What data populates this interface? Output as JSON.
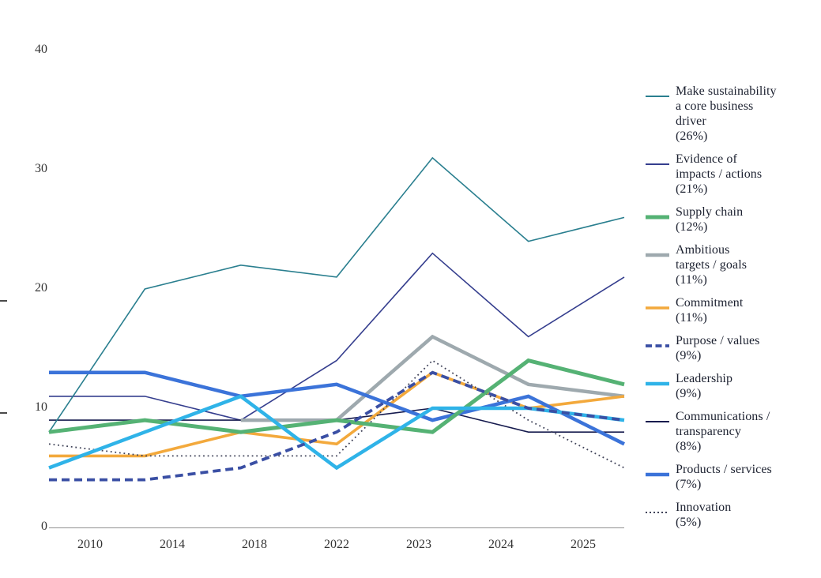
{
  "chart_data": {
    "type": "line",
    "x_labels": [
      "2010",
      "2014",
      "2018",
      "2022",
      "2023",
      "2024",
      "2025"
    ],
    "y_ticks": [
      0,
      10,
      20,
      30,
      40
    ],
    "ylim": [
      0,
      40
    ],
    "grid": false,
    "legend_position": "right",
    "axis_line_color": "#909090",
    "axis_label_color": "#333333",
    "legend_text_color": "#1c2130",
    "z_order": [
      1,
      7,
      0,
      3,
      4,
      9,
      8,
      2,
      6,
      5
    ],
    "series": [
      {
        "name": "Make sustainability a core business driver",
        "percent": "(26%)",
        "legend_lines": [
          "Make sustainability",
          "a core business",
          "driver"
        ],
        "color": "#2A7F8F",
        "style": "solid",
        "width": 1.6,
        "values": [
          8,
          20,
          22,
          21,
          31,
          24,
          26
        ]
      },
      {
        "name": "Evidence of impacts / actions",
        "percent": "(21%)",
        "legend_lines": [
          "Evidence of",
          "impacts / actions"
        ],
        "color": "#353E8E",
        "style": "solid",
        "width": 1.6,
        "values": [
          11,
          11,
          9,
          14,
          23,
          16,
          21
        ]
      },
      {
        "name": "Supply chain",
        "percent": "(12%)",
        "legend_lines": [
          "Supply chain"
        ],
        "color": "#55B274",
        "style": "solid",
        "width": 5,
        "values": [
          8,
          9,
          8,
          9,
          8,
          14,
          12
        ]
      },
      {
        "name": "Ambitious targets / goals",
        "percent": "(11%)",
        "legend_lines": [
          "Ambitious",
          "targets / goals"
        ],
        "color": "#9EA9AE",
        "style": "solid",
        "width": 4.5,
        "values": [
          null,
          null,
          9,
          9,
          16,
          12,
          11
        ]
      },
      {
        "name": "Commitment",
        "percent": "(11%)",
        "legend_lines": [
          "Commitment"
        ],
        "color": "#F3A93C",
        "style": "solid",
        "width": 3.6,
        "values": [
          6,
          6,
          8,
          7,
          13,
          10,
          11
        ]
      },
      {
        "name": "Purpose / values",
        "percent": "(9%)",
        "legend_lines": [
          "Purpose / values"
        ],
        "color": "#3A4FA4",
        "style": "dashed",
        "width": 3.8,
        "values": [
          4,
          4,
          5,
          8,
          13,
          10,
          9
        ]
      },
      {
        "name": "Leadership",
        "percent": "(9%)",
        "legend_lines": [
          "Leadership"
        ],
        "color": "#2FB3E8",
        "style": "solid",
        "width": 4.5,
        "values": [
          5,
          8,
          11,
          5,
          10,
          10,
          9
        ]
      },
      {
        "name": "Communications / transparency",
        "percent": "(8%)",
        "legend_lines": [
          "Communications /",
          "transparency"
        ],
        "color": "#161B4E",
        "style": "solid",
        "width": 1.6,
        "values": [
          9,
          9,
          9,
          9,
          10,
          8,
          8
        ]
      },
      {
        "name": "Products / services",
        "percent": "(7%)",
        "legend_lines": [
          "Products / services"
        ],
        "color": "#3B73D9",
        "style": "solid",
        "width": 4.5,
        "values": [
          13,
          13,
          11,
          12,
          9,
          11,
          7
        ]
      },
      {
        "name": "Innovation",
        "percent": "(5%)",
        "legend_lines": [
          "Innovation"
        ],
        "color": "#3F4258",
        "style": "dotted",
        "width": 1.8,
        "values": [
          7,
          6,
          6,
          6,
          14,
          9,
          5
        ]
      }
    ]
  }
}
